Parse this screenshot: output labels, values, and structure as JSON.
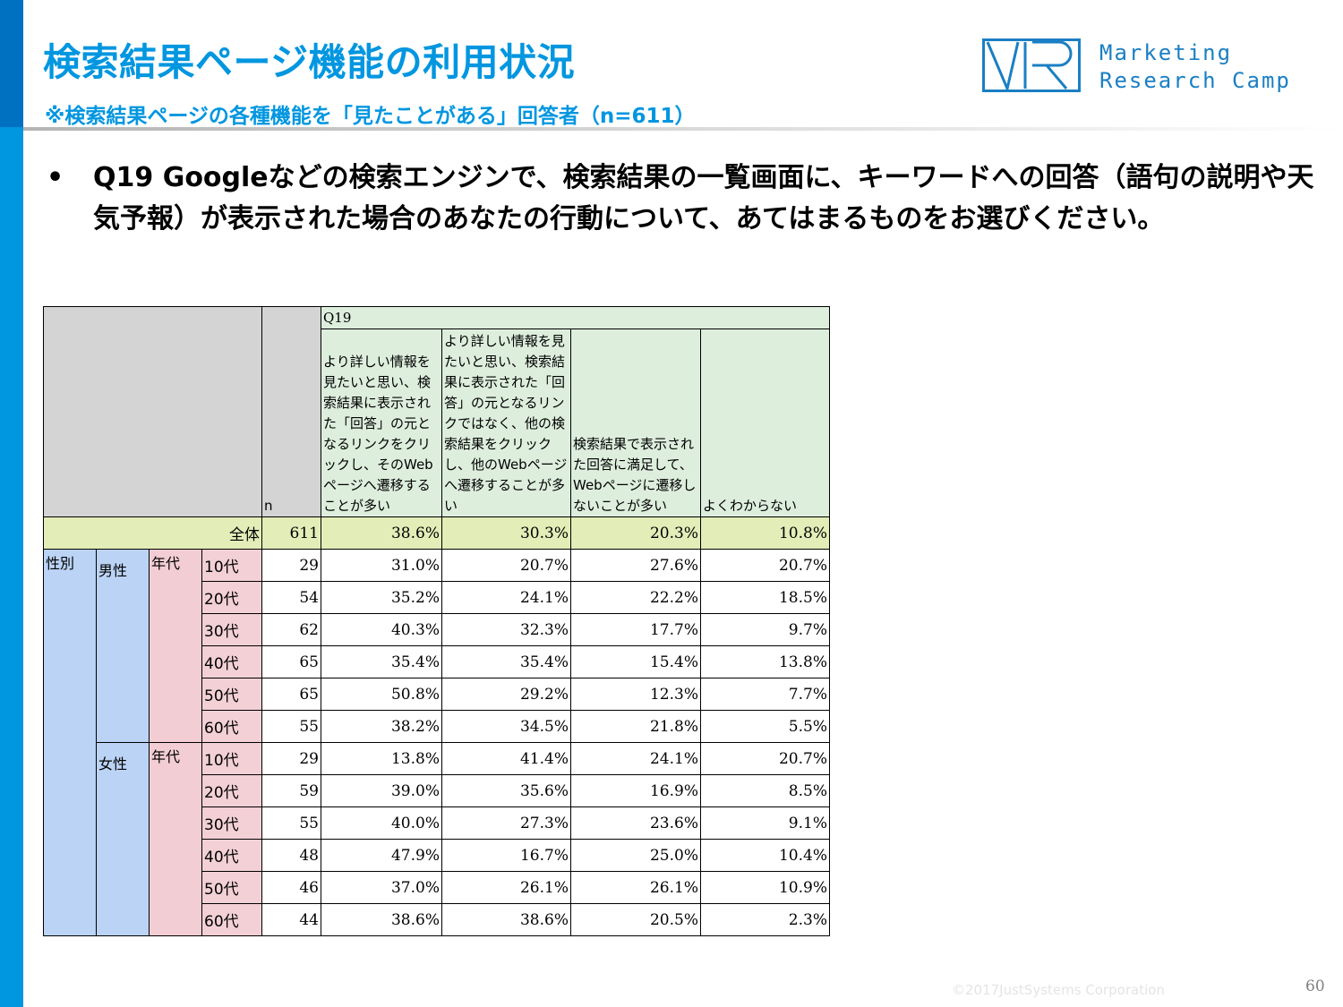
{
  "header": {
    "title": "検索結果ページ機能の利用状況",
    "subtitle": "※検索結果ページの各種機能を「見たことがある」回答者（n=611）",
    "logo_text_line1": "Marketing",
    "logo_text_line2": "Research Camp",
    "logo_mark": "VR"
  },
  "question": {
    "bullet": "•",
    "text": "Q19 Googleなどの検索エンジンで、検索結果の一覧画面に、キーワードへの回答（語句の説明や天気予報）が表示された場合のあなたの行動について、あてはまるものをお選びください。"
  },
  "table": {
    "q_label": "Q19",
    "n_label": "n",
    "columns": [
      "より詳しい情報を見たいと思い、検索結果に表示された「回答」の元となるリンクをクリックし、そのWebページへ遷移することが多い",
      "より詳しい情報を見たいと思い、検索結果に表示された「回答」の元となるリンクではなく、他の検索結果をクリックし、他のWebページへ遷移することが多い",
      "検索結果で表示された回答に満足して、Webページに遷移しないことが多い",
      "よくわからない"
    ],
    "total": {
      "label": "全体",
      "n": "611",
      "values": [
        "38.6%",
        "30.3%",
        "20.3%",
        "10.8%"
      ]
    },
    "group_label": "性別",
    "age_group_label": "年代",
    "groups": [
      {
        "gender": "男性",
        "rows": [
          {
            "age": "10代",
            "n": "29",
            "values": [
              "31.0%",
              "20.7%",
              "27.6%",
              "20.7%"
            ]
          },
          {
            "age": "20代",
            "n": "54",
            "values": [
              "35.2%",
              "24.1%",
              "22.2%",
              "18.5%"
            ]
          },
          {
            "age": "30代",
            "n": "62",
            "values": [
              "40.3%",
              "32.3%",
              "17.7%",
              "9.7%"
            ]
          },
          {
            "age": "40代",
            "n": "65",
            "values": [
              "35.4%",
              "35.4%",
              "15.4%",
              "13.8%"
            ]
          },
          {
            "age": "50代",
            "n": "65",
            "values": [
              "50.8%",
              "29.2%",
              "12.3%",
              "7.7%"
            ]
          },
          {
            "age": "60代",
            "n": "55",
            "values": [
              "38.2%",
              "34.5%",
              "21.8%",
              "5.5%"
            ]
          }
        ]
      },
      {
        "gender": "女性",
        "rows": [
          {
            "age": "10代",
            "n": "29",
            "values": [
              "13.8%",
              "41.4%",
              "24.1%",
              "20.7%"
            ]
          },
          {
            "age": "20代",
            "n": "59",
            "values": [
              "39.0%",
              "35.6%",
              "16.9%",
              "8.5%"
            ]
          },
          {
            "age": "30代",
            "n": "55",
            "values": [
              "40.0%",
              "27.3%",
              "23.6%",
              "9.1%"
            ]
          },
          {
            "age": "40代",
            "n": "48",
            "values": [
              "47.9%",
              "16.7%",
              "25.0%",
              "10.4%"
            ]
          },
          {
            "age": "50代",
            "n": "46",
            "values": [
              "37.0%",
              "26.1%",
              "26.1%",
              "10.9%"
            ]
          },
          {
            "age": "60代",
            "n": "44",
            "values": [
              "38.6%",
              "38.6%",
              "20.5%",
              "2.3%"
            ]
          }
        ]
      }
    ]
  },
  "footer": {
    "copyright": "©2017JustSystems Corporation",
    "page_number": "60"
  },
  "colors": {
    "accent": "#0096e0",
    "header_gray": "#d4d4d4",
    "header_green": "#ddeedd",
    "total_row": "#e2edb8",
    "gender_blue": "#bbd3f5",
    "age_pink": "#f2cdd3"
  }
}
